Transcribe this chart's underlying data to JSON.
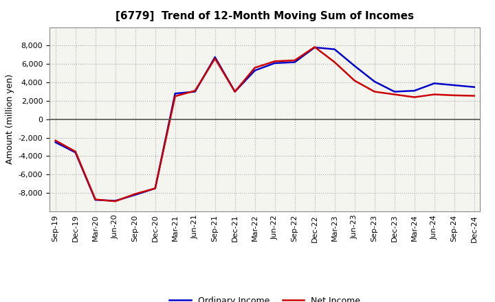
{
  "title": "[6779]  Trend of 12-Month Moving Sum of Incomes",
  "ylabel": "Amount (million yen)",
  "background_color": "#ffffff",
  "plot_bg_color": "#f5f5f0",
  "grid_color": "#aaaaaa",
  "x_labels": [
    "Sep-19",
    "Dec-19",
    "Mar-20",
    "Jun-20",
    "Sep-20",
    "Dec-20",
    "Mar-21",
    "Jun-21",
    "Sep-21",
    "Dec-21",
    "Mar-22",
    "Jun-22",
    "Sep-22",
    "Dec-22",
    "Mar-23",
    "Jun-23",
    "Sep-23",
    "Dec-23",
    "Mar-24",
    "Jun-24",
    "Sep-24",
    "Dec-24"
  ],
  "ordinary_income": [
    -2500,
    -3600,
    -8750,
    -8850,
    -8200,
    -7500,
    2800,
    3000,
    6750,
    3000,
    5300,
    6100,
    6200,
    7800,
    7600,
    5800,
    4100,
    3000,
    3100,
    3900,
    3700,
    3500
  ],
  "net_income": [
    -2300,
    -3500,
    -8700,
    -8900,
    -8100,
    -7500,
    2500,
    3100,
    6600,
    3000,
    5600,
    6300,
    6400,
    7850,
    6200,
    4200,
    3000,
    2700,
    2400,
    2700,
    2600,
    2550
  ],
  "ordinary_color": "#0000cc",
  "net_color": "#cc0000",
  "ylim": [
    -10000,
    10000
  ],
  "yticks": [
    -8000,
    -6000,
    -4000,
    -2000,
    0,
    2000,
    4000,
    6000,
    8000
  ],
  "legend_labels": [
    "Ordinary Income",
    "Net Income"
  ],
  "title_fontsize": 11,
  "tick_fontsize": 8,
  "ylabel_fontsize": 9
}
